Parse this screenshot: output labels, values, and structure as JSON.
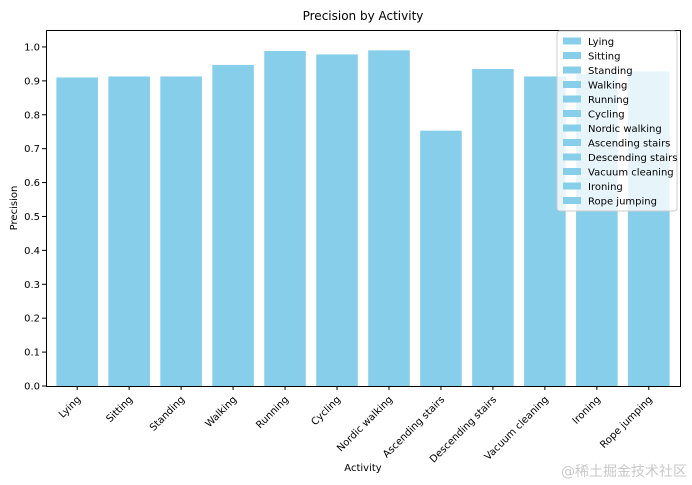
{
  "chart_data": {
    "type": "bar",
    "title": "Precision by Activity",
    "xlabel": "Activity",
    "ylabel": "Precision",
    "categories": [
      "Lying",
      "Sitting",
      "Standing",
      "Walking",
      "Running",
      "Cycling",
      "Nordic walking",
      "Ascending stairs",
      "Descending stairs",
      "Vacuum cleaning",
      "Ironing",
      "Rope jumping"
    ],
    "values": [
      0.91,
      0.913,
      0.913,
      0.947,
      0.988,
      0.978,
      0.99,
      0.753,
      0.935,
      0.913,
      0.92,
      0.928
    ],
    "ylim": [
      0,
      1.05
    ],
    "yticks": [
      0.0,
      0.1,
      0.2,
      0.3,
      0.4,
      0.5,
      0.6,
      0.7,
      0.8,
      0.9,
      1.0
    ],
    "ytick_labels": [
      "0.0",
      "0.1",
      "0.2",
      "0.3",
      "0.4",
      "0.5",
      "0.6",
      "0.7",
      "0.8",
      "0.9",
      "1.0"
    ],
    "bar_color": "#87ceeb",
    "grid": false,
    "legend_position": "top-right",
    "legend": [
      "Lying",
      "Sitting",
      "Standing",
      "Walking",
      "Running",
      "Cycling",
      "Nordic walking",
      "Ascending stairs",
      "Descending stairs",
      "Vacuum cleaning",
      "Ironing",
      "Rope jumping"
    ]
  },
  "watermark": "@稀土掘金技术社区"
}
